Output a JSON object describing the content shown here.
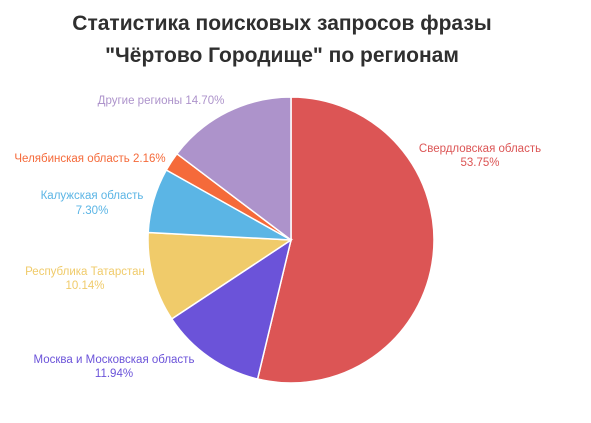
{
  "chart_data": {
    "type": "pie",
    "title_lines": [
      "Статистика поисковых запросов фразы",
      "\"Чёртово Городище\" по регионам"
    ],
    "start_angle_deg": 0,
    "direction": "clockwise",
    "slices": [
      {
        "name": "Свердловская область",
        "value_label": "53.75%",
        "value": 53.75,
        "color": "#dc5555"
      },
      {
        "name": "Москва и Московская область",
        "value_label": "11.94%",
        "value": 11.94,
        "color": "#6b53d9"
      },
      {
        "name": "Республика Татарстан",
        "value_label": "10.14%",
        "value": 10.14,
        "color": "#f0cb6a"
      },
      {
        "name": "Калужская область",
        "value_label": "7.30%",
        "value": 7.3,
        "color": "#5bb5e5"
      },
      {
        "name": "Челябинская область",
        "value_label": "2.16%",
        "value": 2.16,
        "color": "#f56a3a"
      },
      {
        "name": "Другие регионы",
        "value_label": "14.70%",
        "value": 14.7,
        "color": "#ad93cb"
      }
    ]
  }
}
